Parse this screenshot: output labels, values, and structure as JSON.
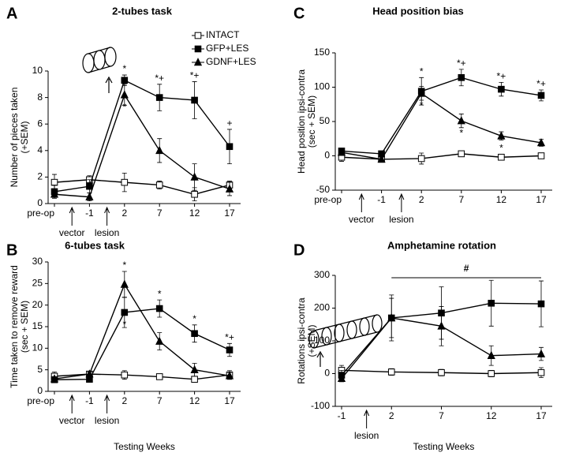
{
  "chart_data": [
    {
      "type": "line",
      "panel_label": "A",
      "title": "2-tubes task",
      "ylabel": [
        "Number of pieces taken",
        "(+SEM)"
      ],
      "categories": [
        "pre-op",
        "-1",
        "2",
        "7",
        "12",
        "17"
      ],
      "ylim": [
        0,
        10
      ],
      "yticks": [
        0,
        2,
        4,
        6,
        8,
        10
      ],
      "legend": "upper right",
      "events": [
        {
          "label": "vector",
          "before": "-1"
        },
        {
          "label": "lesion",
          "before": "2"
        }
      ],
      "series": [
        {
          "name": "INTACT",
          "color": "#000000",
          "marker": "open-square",
          "values": [
            1.6,
            1.8,
            1.6,
            1.4,
            0.7,
            1.4
          ],
          "errors": [
            0.6,
            0.3,
            0.7,
            0.3,
            0.5,
            0.3
          ]
        },
        {
          "name": "GFP+LES",
          "color": "#000000",
          "marker": "square",
          "values": [
            0.9,
            1.3,
            9.3,
            8.0,
            7.8,
            4.3
          ],
          "errors": [
            0.5,
            0.5,
            0.4,
            1.0,
            1.4,
            1.3
          ],
          "labels_above": [
            null,
            null,
            "*",
            "*+",
            "*+",
            "+"
          ]
        },
        {
          "name": "GDNF+LES",
          "color": "#000000",
          "marker": "triangle",
          "values": [
            0.7,
            0.5,
            8.2,
            4.0,
            2.0,
            1.1
          ],
          "errors": [
            0.3,
            0.3,
            0.8,
            0.9,
            1.0,
            0.5
          ],
          "labels_below": [
            null,
            null,
            "*",
            null,
            null,
            null
          ]
        }
      ]
    },
    {
      "type": "line",
      "panel_label": "B",
      "title": "6-tubes task",
      "ylabel": [
        "Time taken to remove reward",
        "(sec + SEM)"
      ],
      "xlabel": "Testing Weeks",
      "categories": [
        "pre-op",
        "-1",
        "2",
        "7",
        "12",
        "17"
      ],
      "ylim": [
        0,
        30
      ],
      "yticks": [
        0,
        5,
        10,
        15,
        20,
        25,
        30
      ],
      "events": [
        {
          "label": "vector",
          "before": "-1"
        },
        {
          "label": "lesion",
          "before": "2"
        }
      ],
      "series": [
        {
          "color": "#000000",
          "marker": "open-square",
          "values": [
            3.5,
            4.0,
            3.8,
            3.4,
            2.8,
            3.8
          ],
          "errors": [
            1.0,
            0.5,
            1.0,
            0.5,
            0.5,
            1.0
          ]
        },
        {
          "color": "#000000",
          "marker": "square",
          "values": [
            2.7,
            2.8,
            18.3,
            19.2,
            13.4,
            9.6
          ],
          "errors": [
            0.5,
            0.5,
            3.5,
            2.0,
            2.0,
            1.5
          ],
          "labels_above": [
            null,
            null,
            null,
            "*",
            "*",
            "*+"
          ],
          "labels_below": [
            null,
            null,
            "*",
            null,
            null,
            null
          ]
        },
        {
          "color": "#000000",
          "marker": "triangle",
          "values": [
            2.9,
            4.0,
            24.8,
            11.6,
            5.0,
            3.6
          ],
          "errors": [
            0.5,
            0.5,
            3.0,
            2.0,
            1.5,
            0.8
          ],
          "labels_above": [
            null,
            null,
            "*",
            null,
            null,
            null
          ]
        }
      ]
    },
    {
      "type": "line",
      "panel_label": "C",
      "title": "Head position bias",
      "ylabel": [
        "Head position ipsi-contra",
        "(sec + SEM)"
      ],
      "categories": [
        "pre-op",
        "-1",
        "2",
        "7",
        "12",
        "17"
      ],
      "ylim": [
        -50,
        150
      ],
      "yticks": [
        -50,
        0,
        50,
        100,
        150
      ],
      "events": [
        {
          "label": "vector",
          "before": "-1"
        },
        {
          "label": "lesion",
          "before": "2"
        }
      ],
      "series": [
        {
          "color": "#000000",
          "marker": "open-square",
          "values": [
            -2,
            -5,
            -4,
            3,
            -2,
            0
          ],
          "errors": [
            6,
            3,
            8,
            4,
            3,
            3
          ]
        },
        {
          "color": "#000000",
          "marker": "square",
          "values": [
            7,
            3,
            94,
            114,
            97,
            88
          ],
          "errors": [
            4,
            3,
            20,
            12,
            10,
            8
          ],
          "labels_above": [
            null,
            null,
            "*",
            "*+",
            "*+",
            "*+"
          ]
        },
        {
          "color": "#000000",
          "marker": "triangle",
          "values": [
            5,
            -5,
            91,
            51,
            29,
            19
          ],
          "errors": [
            4,
            3,
            10,
            10,
            6,
            5
          ],
          "labels_below": [
            null,
            null,
            "*",
            "*",
            "*",
            null
          ]
        }
      ]
    },
    {
      "type": "line",
      "panel_label": "D",
      "title": "Amphetamine rotation",
      "ylabel": [
        "Rotations ipsi-contra",
        "(+SEM)"
      ],
      "xlabel": "Testing Weeks",
      "categories": [
        "-1",
        "2",
        "7",
        "12",
        "17"
      ],
      "ylim": [
        -100,
        300
      ],
      "yticks": [
        -100,
        0,
        100,
        200,
        300
      ],
      "events": [
        {
          "label": "lesion",
          "before": "2"
        }
      ],
      "bracket": {
        "label": "#",
        "from": "2",
        "to": "17"
      },
      "series": [
        {
          "color": "#000000",
          "marker": "open-square",
          "values": [
            10,
            5,
            3,
            0,
            3
          ],
          "errors": [
            15,
            10,
            10,
            10,
            15
          ]
        },
        {
          "color": "#000000",
          "marker": "square",
          "values": [
            -5,
            170,
            185,
            215,
            213
          ],
          "errors": [
            15,
            70,
            80,
            70,
            70
          ]
        },
        {
          "color": "#000000",
          "marker": "triangle",
          "values": [
            -15,
            170,
            145,
            55,
            60
          ],
          "errors": [
            10,
            60,
            60,
            30,
            20
          ]
        }
      ]
    }
  ]
}
